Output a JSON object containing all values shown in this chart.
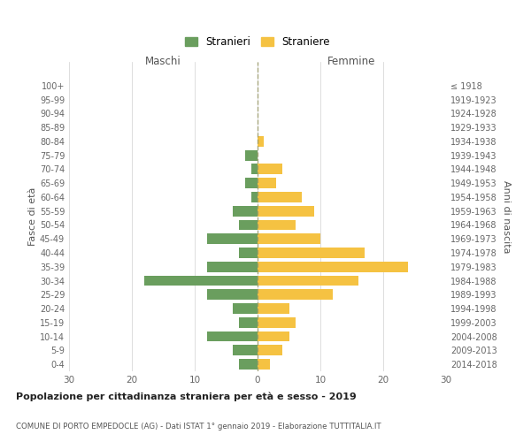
{
  "age_groups": [
    "0-4",
    "5-9",
    "10-14",
    "15-19",
    "20-24",
    "25-29",
    "30-34",
    "35-39",
    "40-44",
    "45-49",
    "50-54",
    "55-59",
    "60-64",
    "65-69",
    "70-74",
    "75-79",
    "80-84",
    "85-89",
    "90-94",
    "95-99",
    "100+"
  ],
  "birth_years": [
    "2014-2018",
    "2009-2013",
    "2004-2008",
    "1999-2003",
    "1994-1998",
    "1989-1993",
    "1984-1988",
    "1979-1983",
    "1974-1978",
    "1969-1973",
    "1964-1968",
    "1959-1963",
    "1954-1958",
    "1949-1953",
    "1944-1948",
    "1939-1943",
    "1934-1938",
    "1929-1933",
    "1924-1928",
    "1919-1923",
    "≤ 1918"
  ],
  "maschi": [
    3,
    4,
    8,
    3,
    4,
    8,
    18,
    8,
    3,
    8,
    3,
    4,
    1,
    2,
    1,
    2,
    0,
    0,
    0,
    0,
    0
  ],
  "femmine": [
    2,
    4,
    5,
    6,
    5,
    12,
    16,
    24,
    17,
    10,
    6,
    9,
    7,
    3,
    4,
    0,
    1,
    0,
    0,
    0,
    0
  ],
  "color_maschi": "#6a9e5e",
  "color_femmine": "#f5c242",
  "title": "Popolazione per cittadinanza straniera per età e sesso - 2019",
  "subtitle": "COMUNE DI PORTO EMPEDOCLE (AG) - Dati ISTAT 1° gennaio 2019 - Elaborazione TUTTITALIA.IT",
  "legend_maschi": "Stranieri",
  "legend_femmine": "Straniere",
  "xlabel_left": "Maschi",
  "xlabel_right": "Femmine",
  "ylabel_left": "Fasce di età",
  "ylabel_right": "Anni di nascita",
  "xlim": 30,
  "background_color": "#ffffff",
  "grid_color": "#d0d0d0"
}
